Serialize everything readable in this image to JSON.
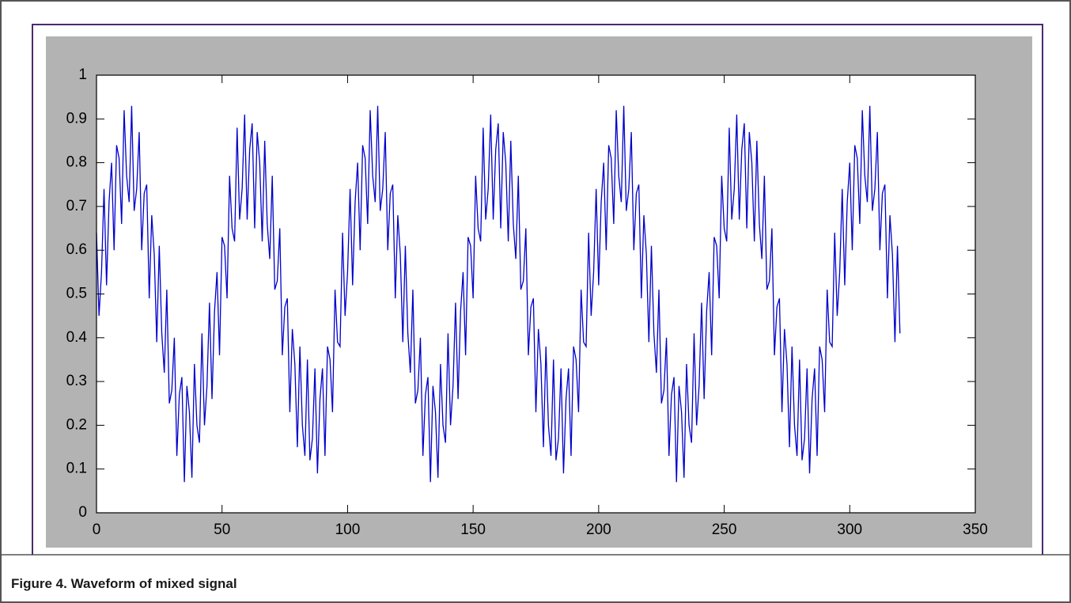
{
  "chart_data": {
    "type": "line",
    "title": "Figure 4.  Waveform of mixed signal",
    "color": "#0000cc",
    "xlim": [
      0,
      350
    ],
    "xticks": [
      0,
      50,
      100,
      150,
      200,
      250,
      300,
      350
    ],
    "ylim": [
      0,
      1
    ],
    "yticks": [
      0,
      0.1,
      0.2,
      0.3,
      0.4,
      0.5,
      0.6,
      0.7,
      0.8,
      0.9,
      1
    ],
    "grid": false,
    "x": [
      0,
      1,
      2,
      3,
      4,
      5,
      6,
      7,
      8,
      9,
      10,
      11,
      12,
      13,
      14,
      15,
      16,
      17,
      18,
      19,
      20,
      21,
      22,
      23,
      24,
      25,
      26,
      27,
      28,
      29,
      30,
      31,
      32,
      33,
      34,
      35,
      36,
      37,
      38,
      39,
      40,
      41,
      42,
      43,
      44,
      45,
      46,
      47,
      48,
      49,
      50,
      51,
      52,
      53,
      54,
      55,
      56,
      57,
      58,
      59,
      60,
      61,
      62,
      63,
      64,
      65,
      66,
      67,
      68,
      69,
      70,
      71,
      72,
      73,
      74,
      75,
      76,
      77,
      78,
      79,
      80,
      81,
      82,
      83,
      84,
      85,
      86,
      87,
      88,
      89,
      90,
      91,
      92,
      93,
      94,
      95,
      96,
      97,
      98,
      99,
      100,
      101,
      102,
      103,
      104,
      105,
      106,
      107,
      108,
      109,
      110,
      111,
      112,
      113,
      114,
      115,
      116,
      117,
      118,
      119,
      120,
      121,
      122,
      123,
      124,
      125,
      126,
      127,
      128,
      129,
      130,
      131,
      132,
      133,
      134,
      135,
      136,
      137,
      138,
      139,
      140,
      141,
      142,
      143,
      144,
      145,
      146,
      147,
      148,
      149,
      150,
      151,
      152,
      153,
      154,
      155,
      156,
      157,
      158,
      159,
      160,
      161,
      162,
      163,
      164,
      165,
      166,
      167,
      168,
      169,
      170,
      171,
      172,
      173,
      174,
      175,
      176,
      177,
      178,
      179,
      180,
      181,
      182,
      183,
      184,
      185,
      186,
      187,
      188,
      189,
      190,
      191,
      192,
      193,
      194,
      195,
      196,
      197,
      198,
      199,
      200,
      201,
      202,
      203,
      204,
      205,
      206,
      207,
      208,
      209,
      210,
      211,
      212,
      213,
      214,
      215,
      216,
      217,
      218,
      219,
      220,
      221,
      222,
      223,
      224,
      225,
      226,
      227,
      228,
      229,
      230,
      231,
      232,
      233,
      234,
      235,
      236,
      237,
      238,
      239,
      240,
      241,
      242,
      243,
      244,
      245,
      246,
      247,
      248,
      249,
      250,
      251,
      252,
      253,
      254,
      255,
      256,
      257,
      258,
      259,
      260,
      261,
      262,
      263,
      264,
      265,
      266,
      267,
      268,
      269,
      270,
      271,
      272,
      273,
      274,
      275,
      276,
      277,
      278,
      279,
      280,
      281,
      282,
      283,
      284,
      285,
      286,
      287,
      288,
      289,
      290,
      291,
      292,
      293,
      294,
      295,
      296,
      297,
      298,
      299,
      300,
      301,
      302,
      303,
      304,
      305,
      306,
      307,
      308,
      309,
      310,
      311,
      312,
      313,
      314,
      315,
      316,
      317,
      318,
      319,
      320
    ],
    "values": [
      0.64,
      0.45,
      0.55,
      0.74,
      0.52,
      0.71,
      0.8,
      0.6,
      0.84,
      0.81,
      0.66,
      0.92,
      0.77,
      0.71,
      0.93,
      0.69,
      0.74,
      0.87,
      0.6,
      0.73,
      0.75,
      0.49,
      0.68,
      0.59,
      0.39,
      0.61,
      0.41,
      0.32,
      0.51,
      0.25,
      0.28,
      0.4,
      0.13,
      0.27,
      0.31,
      0.07,
      0.29,
      0.23,
      0.08,
      0.34,
      0.2,
      0.16,
      0.41,
      0.2,
      0.29,
      0.48,
      0.26,
      0.46,
      0.55,
      0.36,
      0.63,
      0.61,
      0.49,
      0.77,
      0.65,
      0.62,
      0.88,
      0.67,
      0.74,
      0.91,
      0.67,
      0.83,
      0.89,
      0.65,
      0.87,
      0.8,
      0.62,
      0.85,
      0.66,
      0.58,
      0.77,
      0.51,
      0.53,
      0.65,
      0.36,
      0.47,
      0.49,
      0.23,
      0.42,
      0.34,
      0.15,
      0.38,
      0.2,
      0.13,
      0.35,
      0.12,
      0.17,
      0.33,
      0.09,
      0.26,
      0.33,
      0.13,
      0.38,
      0.35,
      0.23,
      0.51,
      0.39,
      0.38,
      0.64,
      0.45,
      0.55,
      0.74,
      0.52,
      0.71,
      0.8,
      0.6,
      0.84,
      0.81,
      0.66,
      0.92,
      0.77,
      0.71,
      0.93,
      0.69,
      0.74,
      0.87,
      0.6,
      0.73,
      0.75,
      0.49,
      0.68,
      0.59,
      0.39,
      0.61,
      0.41,
      0.32,
      0.51,
      0.25,
      0.28,
      0.4,
      0.13,
      0.27,
      0.31,
      0.07,
      0.29,
      0.23,
      0.08,
      0.34,
      0.2,
      0.16,
      0.41,
      0.2,
      0.29,
      0.48,
      0.26,
      0.46,
      0.55,
      0.36,
      0.63,
      0.61,
      0.49,
      0.77,
      0.65,
      0.62,
      0.88,
      0.67,
      0.74,
      0.91,
      0.67,
      0.83,
      0.89,
      0.65,
      0.87,
      0.8,
      0.62,
      0.85,
      0.66,
      0.58,
      0.77,
      0.51,
      0.53,
      0.65,
      0.36,
      0.47,
      0.49,
      0.23,
      0.42,
      0.34,
      0.15,
      0.38,
      0.2,
      0.13,
      0.35,
      0.12,
      0.17,
      0.33,
      0.09,
      0.26,
      0.33,
      0.13,
      0.38,
      0.35,
      0.23,
      0.51,
      0.39,
      0.38,
      0.64,
      0.45,
      0.55,
      0.74,
      0.52,
      0.71,
      0.8,
      0.6,
      0.84,
      0.81,
      0.66,
      0.92,
      0.77,
      0.71,
      0.93,
      0.69,
      0.74,
      0.87,
      0.6,
      0.73,
      0.75,
      0.49,
      0.68,
      0.59,
      0.39,
      0.61,
      0.41,
      0.32,
      0.51,
      0.25,
      0.28,
      0.4,
      0.13,
      0.27,
      0.31,
      0.07,
      0.29,
      0.23,
      0.08,
      0.34,
      0.2,
      0.16,
      0.41,
      0.2,
      0.29,
      0.48,
      0.26,
      0.46,
      0.55,
      0.36,
      0.63,
      0.61,
      0.49,
      0.77,
      0.65,
      0.62,
      0.88,
      0.67,
      0.74,
      0.91,
      0.67,
      0.83,
      0.89,
      0.65,
      0.87,
      0.8,
      0.62,
      0.85,
      0.66,
      0.58,
      0.77,
      0.51,
      0.53,
      0.65,
      0.36,
      0.47,
      0.49,
      0.23,
      0.42,
      0.34,
      0.15,
      0.38,
      0.2,
      0.13,
      0.35,
      0.12,
      0.17,
      0.33,
      0.09,
      0.26,
      0.33,
      0.13,
      0.38,
      0.35,
      0.23,
      0.51,
      0.39,
      0.38,
      0.64,
      0.45,
      0.55,
      0.74,
      0.52,
      0.71,
      0.8,
      0.6,
      0.84,
      0.81,
      0.66,
      0.92,
      0.77,
      0.71,
      0.93,
      0.69,
      0.74,
      0.87,
      0.6,
      0.73,
      0.75,
      0.49,
      0.68,
      0.59,
      0.39,
      0.61,
      0.41
    ]
  }
}
